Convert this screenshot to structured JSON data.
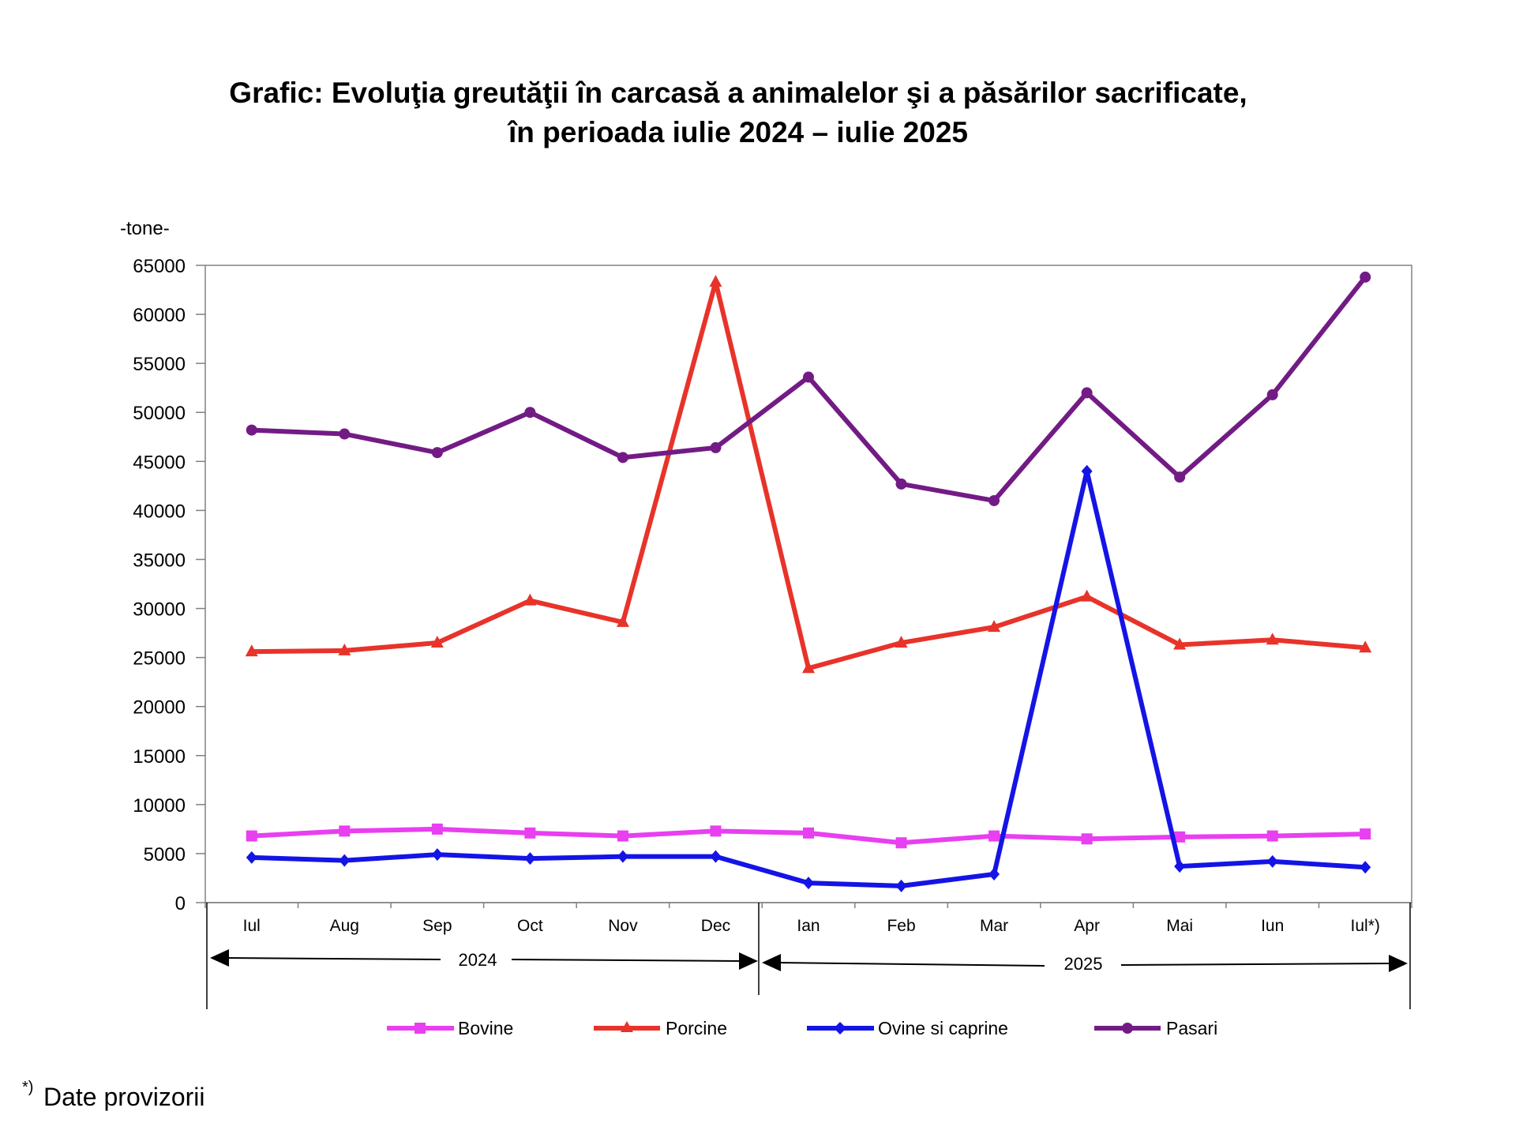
{
  "chart_data": {
    "type": "line",
    "title_line1": "Grafic: Evoluţia greutăţii în carcasă a animalelor şi a păsărilor sacrificate,",
    "title_line2": "în perioada iulie 2024 – iulie 2025",
    "ylabel": "-tone-",
    "ylim": [
      0,
      65000
    ],
    "yticks": [
      0,
      5000,
      10000,
      15000,
      20000,
      25000,
      30000,
      35000,
      40000,
      45000,
      50000,
      55000,
      60000,
      65000
    ],
    "categories": [
      "Iul",
      "Aug",
      "Sep",
      "Oct",
      "Nov",
      "Dec",
      "Ian",
      "Feb",
      "Mar",
      "Apr",
      "Mai",
      "Iun",
      "Iul*)"
    ],
    "year_groups": [
      {
        "label": "2024",
        "span": 6
      },
      {
        "label": "2025",
        "span": 7
      }
    ],
    "grid": false,
    "legend_position": "bottom",
    "series": [
      {
        "name": "Bovine",
        "color": "#e83ff0",
        "marker": "square",
        "values": [
          6800,
          7300,
          7500,
          7100,
          6800,
          7300,
          7100,
          6100,
          6800,
          6500,
          6700,
          6800,
          7000
        ]
      },
      {
        "name": "Porcine",
        "color": "#e8332a",
        "marker": "triangle",
        "values": [
          25600,
          25700,
          26500,
          30800,
          28600,
          63300,
          23900,
          26500,
          28100,
          31200,
          26300,
          26800,
          26000
        ]
      },
      {
        "name": "Ovine si caprine",
        "color": "#1414e6",
        "marker": "diamond",
        "values": [
          4600,
          4300,
          4900,
          4500,
          4700,
          4700,
          2000,
          1700,
          2900,
          44000,
          3700,
          4200,
          3600
        ]
      },
      {
        "name": "Pasari",
        "color": "#731b85",
        "marker": "circle",
        "values": [
          48200,
          47800,
          45900,
          50000,
          45400,
          46400,
          53600,
          42700,
          41000,
          52000,
          43400,
          51800,
          63800
        ]
      }
    ]
  },
  "footnote_mark": "*)",
  "footnote_text": "Date provizorii"
}
